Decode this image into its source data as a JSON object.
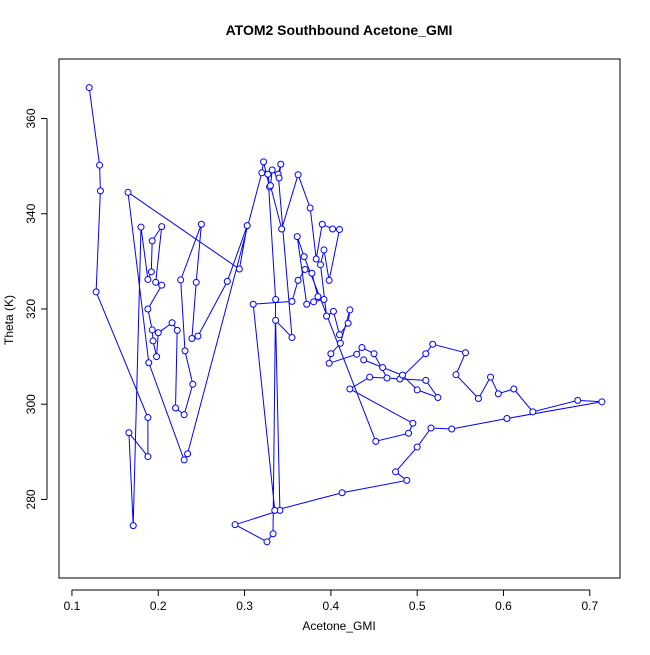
{
  "chart_data": {
    "type": "line",
    "title": "ATOM2 Southbound Acetone_GMI",
    "xlabel": "Acetone_GMI",
    "ylabel": "Theta (K)",
    "xlim": [
      0.085,
      0.735
    ],
    "ylim": [
      263.5,
      372.5
    ],
    "x_ticks": [
      0.1,
      0.2,
      0.3,
      0.4,
      0.5,
      0.6,
      0.7
    ],
    "y_ticks": [
      280,
      300,
      320,
      340,
      360
    ],
    "x_tick_labels": [
      "0.1",
      "0.2",
      "0.3",
      "0.4",
      "0.5",
      "0.6",
      "0.7"
    ],
    "y_tick_labels": [
      "280",
      "300",
      "320",
      "340",
      "360"
    ],
    "grid": false,
    "series": [
      {
        "color": "#0000ff",
        "marker": "open-circle",
        "points": [
          [
            0.12,
            366.5
          ],
          [
            0.132,
            350.2
          ],
          [
            0.133,
            344.8
          ],
          [
            0.128,
            323.6
          ],
          [
            0.188,
            297.2
          ],
          [
            0.188,
            289.0
          ],
          [
            0.166,
            294.0
          ],
          [
            0.171,
            274.5
          ],
          [
            0.18,
            337.2
          ],
          [
            0.188,
            326.2
          ],
          [
            0.192,
            327.8
          ],
          [
            0.193,
            334.3
          ],
          [
            0.204,
            337.3
          ],
          [
            0.197,
            325.6
          ],
          [
            0.204,
            325.0
          ],
          [
            0.188,
            320.0
          ],
          [
            0.193,
            315.6
          ],
          [
            0.194,
            313.3
          ],
          [
            0.198,
            310.0
          ],
          [
            0.2,
            315.0
          ],
          [
            0.216,
            317.1
          ],
          [
            0.222,
            315.5
          ],
          [
            0.22,
            299.2
          ],
          [
            0.23,
            297.8
          ],
          [
            0.24,
            304.2
          ],
          [
            0.231,
            311.2
          ],
          [
            0.226,
            326.1
          ],
          [
            0.25,
            337.8
          ],
          [
            0.244,
            325.6
          ],
          [
            0.239,
            313.8
          ],
          [
            0.246,
            314.3
          ],
          [
            0.28,
            325.8
          ],
          [
            0.303,
            337.5
          ],
          [
            0.294,
            328.4
          ],
          [
            0.165,
            344.5
          ],
          [
            0.189,
            308.7
          ],
          [
            0.23,
            288.3
          ],
          [
            0.234,
            289.6
          ],
          [
            0.32,
            348.6
          ],
          [
            0.322,
            350.9
          ],
          [
            0.329,
            345.6
          ],
          [
            0.327,
            348.3
          ],
          [
            0.336,
            322.0
          ],
          [
            0.333,
            272.8
          ],
          [
            0.326,
            271.1
          ],
          [
            0.289,
            274.7
          ],
          [
            0.341,
            277.7
          ],
          [
            0.336,
            317.6
          ],
          [
            0.355,
            314.0
          ],
          [
            0.339,
            348.3
          ],
          [
            0.342,
            350.4
          ],
          [
            0.34,
            347.5
          ],
          [
            0.332,
            349.2
          ],
          [
            0.33,
            345.9
          ],
          [
            0.343,
            336.8
          ],
          [
            0.362,
            348.2
          ],
          [
            0.376,
            341.2
          ],
          [
            0.383,
            330.5
          ],
          [
            0.39,
            337.8
          ],
          [
            0.402,
            336.8
          ],
          [
            0.41,
            336.7
          ],
          [
            0.398,
            326.0
          ],
          [
            0.392,
            332.4
          ],
          [
            0.388,
            329.3
          ],
          [
            0.395,
            318.5
          ],
          [
            0.403,
            319.5
          ],
          [
            0.41,
            314.6
          ],
          [
            0.42,
            317.0
          ],
          [
            0.422,
            319.8
          ],
          [
            0.411,
            312.8
          ],
          [
            0.4,
            310.6
          ],
          [
            0.398,
            308.6
          ],
          [
            0.43,
            310.5
          ],
          [
            0.436,
            311.9
          ],
          [
            0.45,
            310.6
          ],
          [
            0.465,
            305.5
          ],
          [
            0.48,
            305.3
          ],
          [
            0.51,
            310.6
          ],
          [
            0.518,
            312.6
          ],
          [
            0.556,
            310.8
          ],
          [
            0.545,
            306.2
          ],
          [
            0.571,
            301.2
          ],
          [
            0.585,
            305.7
          ],
          [
            0.594,
            302.2
          ],
          [
            0.612,
            303.2
          ],
          [
            0.634,
            298.4
          ],
          [
            0.686,
            300.8
          ],
          [
            0.714,
            300.5
          ],
          [
            0.604,
            297.0
          ],
          [
            0.54,
            294.8
          ],
          [
            0.516,
            295.0
          ],
          [
            0.5,
            291.0
          ],
          [
            0.475,
            285.8
          ],
          [
            0.488,
            284.0
          ],
          [
            0.413,
            281.4
          ],
          [
            0.335,
            277.7
          ],
          [
            0.31,
            321.0
          ],
          [
            0.355,
            321.6
          ],
          [
            0.362,
            326.0
          ],
          [
            0.37,
            328.3
          ],
          [
            0.378,
            327.5
          ],
          [
            0.385,
            322.6
          ],
          [
            0.392,
            322.0
          ],
          [
            0.38,
            321.5
          ],
          [
            0.372,
            321.0
          ],
          [
            0.361,
            335.2
          ],
          [
            0.369,
            331.0
          ],
          [
            0.452,
            292.2
          ],
          [
            0.49,
            293.9
          ],
          [
            0.495,
            296.0
          ],
          [
            0.422,
            303.2
          ],
          [
            0.445,
            305.7
          ],
          [
            0.51,
            305.0
          ],
          [
            0.524,
            301.4
          ],
          [
            0.5,
            303.0
          ],
          [
            0.483,
            306.1
          ],
          [
            0.46,
            307.7
          ],
          [
            0.438,
            309.3
          ]
        ]
      }
    ]
  }
}
